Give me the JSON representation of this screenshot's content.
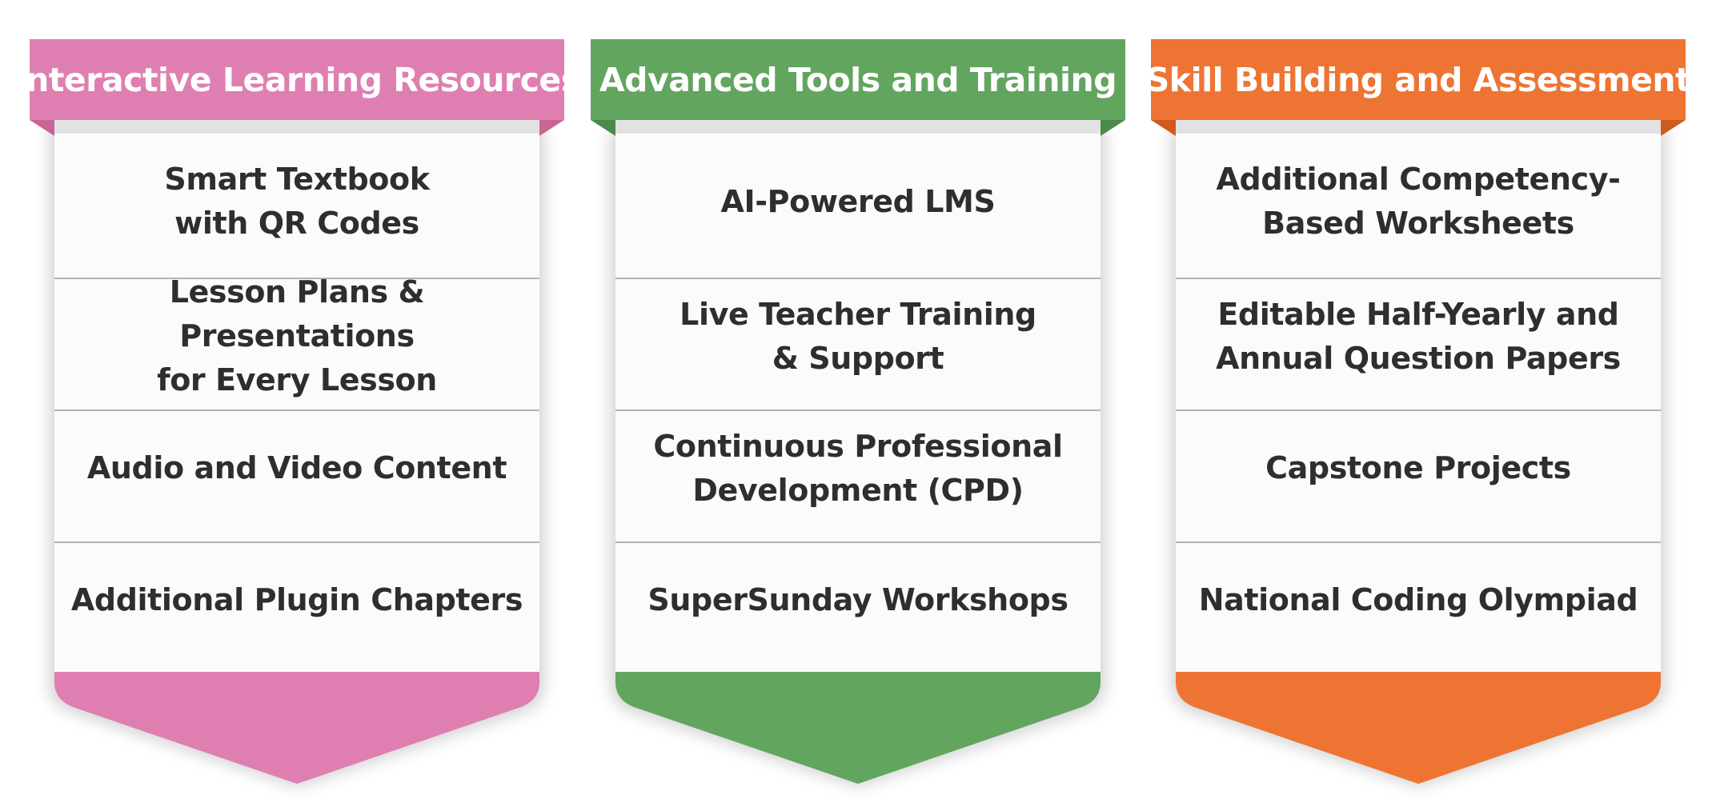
{
  "columns": [
    {
      "title": "Interactive Learning Resources",
      "color": "#df7fb1",
      "fold_color": "#c96497",
      "items": [
        "Smart Textbook\nwith QR Codes",
        "Lesson Plans & Presentations\nfor Every Lesson",
        "Audio and Video Content",
        "Additional Plugin Chapters"
      ]
    },
    {
      "title": "Advanced Tools and Training",
      "color": "#62a55f",
      "fold_color": "#4c8a49",
      "items": [
        "AI-Powered LMS",
        "Live Teacher Training\n& Support",
        "Continuous Professional\nDevelopment (CPD)",
        "SuperSunday Workshops"
      ]
    },
    {
      "title": "Skill Building and Assessment",
      "color": "#ee7433",
      "fold_color": "#cf5b1f",
      "items": [
        "Additional Competency-\nBased Worksheets",
        "Editable Half-Yearly and\nAnnual Question Papers",
        "Capstone Projects",
        "National Coding Olympiad"
      ]
    }
  ]
}
